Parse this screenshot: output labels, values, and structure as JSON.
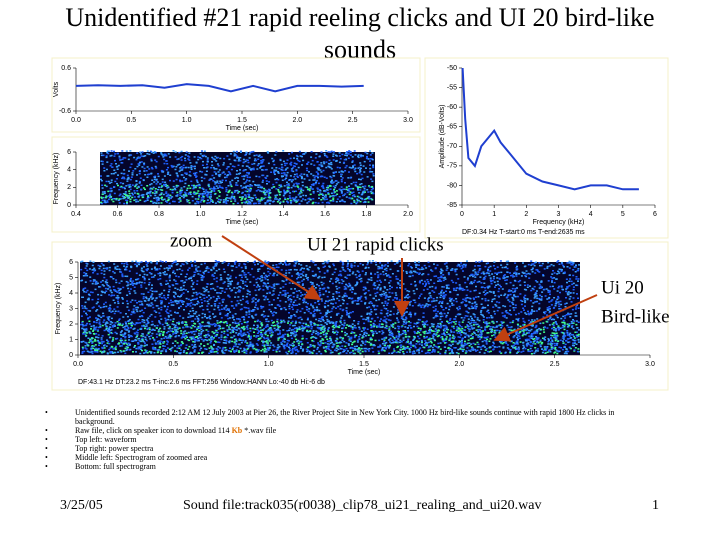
{
  "slide": {
    "title": "Unidentified #21 rapid reeling clicks and UI 20 bird-like sounds",
    "annotations": [
      "zoom",
      "UI 21 rapid clicks",
      "Ui 20",
      "Bird-like"
    ],
    "bullets": [
      [
        "Unidentified sounds recorded 2:12 AM 12 July 2003 at Pier 26, the River Project Site in New York City. 1000 Hz bird-like sounds continue with rapid 1800 Hz clicks in background."
      ],
      [
        "Raw file, click on speaker icon to download 114 ",
        "Kb",
        " *.wav file"
      ],
      [
        "Top left: waveform"
      ],
      [
        "Top right: power spectra"
      ],
      [
        "Middle left: Spectrogram of zoomed area"
      ],
      [
        "Bottom: full spectrogram"
      ]
    ],
    "footer": {
      "date": "3/25/05",
      "file": "Sound file:track035(r0038)_clip78_ui21_realing_and_ui20.wav",
      "page": "1"
    }
  },
  "chart_data": [
    {
      "type": "line",
      "xlabel": "Time (sec)",
      "ylabel": "Volts",
      "color": "#1f3fd0",
      "x": [
        0,
        0.2,
        0.4,
        0.6,
        0.8,
        1.0,
        1.2,
        1.4,
        1.6,
        1.8,
        2.0,
        2.2,
        2.4,
        2.6
      ],
      "values": [
        0.1,
        0.12,
        0.1,
        0.12,
        0.05,
        0.15,
        0.1,
        -0.05,
        0.1,
        -0.05,
        0.1,
        0.1,
        0.08,
        0.1
      ],
      "xlim": [
        0,
        3
      ],
      "xticks": [
        {
          "value": 0,
          "label": "0.0"
        },
        0.5,
        {
          "value": 1,
          "label": "1.0"
        },
        1.5,
        {
          "value": 2,
          "label": "2.0"
        },
        2.5,
        {
          "value": 3,
          "label": "3.0"
        }
      ],
      "ylim": [
        -0.6,
        0.6
      ],
      "yticks": [
        -0.6,
        0.6
      ]
    },
    {
      "type": "spectrogram",
      "xlabel": "Time (sec)",
      "ylabel": "Frequency (kHz)",
      "xlim": [
        0.4,
        2.0
      ],
      "xticks": [
        0.4,
        0.6,
        0.8,
        {
          "value": 1,
          "label": "1.0"
        },
        1.2,
        1.4,
        1.6,
        1.8,
        {
          "value": 2,
          "label": "2.0"
        }
      ],
      "ylim": [
        0,
        6
      ],
      "yticks": [
        0,
        2,
        4,
        6
      ]
    },
    {
      "type": "line",
      "xlabel": "Frequency (kHz)",
      "ylabel": "Amplitude (dB-Volts)",
      "color": "#1f3fd0",
      "note": "DF:0.34 Hz   T-start:0 ms   T-end:2635 ms",
      "x": [
        0.02,
        0.1,
        0.2,
        0.4,
        0.6,
        0.8,
        1.0,
        1.2,
        1.5,
        2.0,
        2.5,
        3.0,
        3.5,
        4.0,
        4.5,
        5.0,
        5.5
      ],
      "values": [
        -50,
        -63,
        -73,
        -75,
        -70,
        -68,
        -66,
        -69,
        -72,
        -77,
        -79,
        -80,
        -81,
        -80,
        -80,
        -81,
        -81
      ],
      "xlim": [
        0,
        6
      ],
      "xticks": [
        0,
        1,
        2,
        3,
        4,
        5,
        6
      ],
      "ylim": [
        -85,
        -50
      ],
      "yticks": [
        -85,
        -80,
        -75,
        -70,
        -65,
        -60,
        -55,
        -50
      ]
    },
    {
      "type": "spectrogram",
      "xlabel": "Time (sec)",
      "ylabel": "Frequency (kHz)",
      "note": "DF:43.1 Hz   DT:23.2 ms   T-inc:2.6 ms   FFT:256   Window:HANN   Lo:-40 db   Hi:-6 db",
      "xlim": [
        0,
        3
      ],
      "xticks": [
        {
          "value": 0,
          "label": "0.0"
        },
        0.5,
        {
          "value": 1,
          "label": "1.0"
        },
        1.5,
        {
          "value": 2,
          "label": "2.0"
        },
        2.5,
        {
          "value": 3,
          "label": "3.0"
        }
      ],
      "ylim": [
        0,
        6
      ],
      "yticks": [
        0,
        1,
        2,
        3,
        4,
        5,
        6
      ]
    }
  ]
}
